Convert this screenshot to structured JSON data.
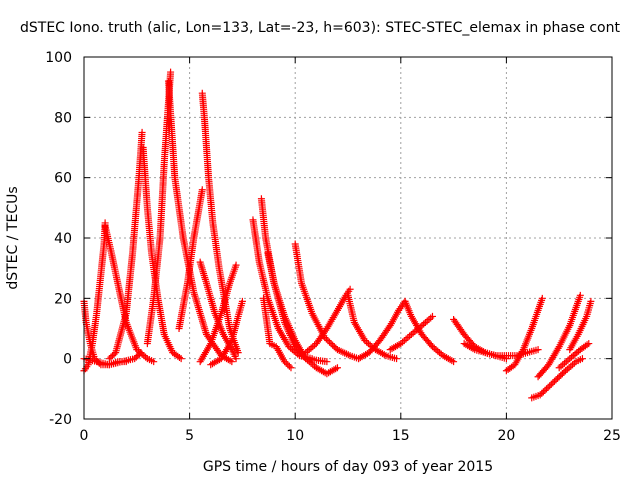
{
  "chart_data": {
    "type": "scatter",
    "title": "dSTEC Iono. truth (alic, Lon=133, Lat=-23, h=603): STEC-STEC_elemax in phase cont",
    "xlabel": "GPS time / hours of day 093 of year 2015",
    "ylabel": "dSTEC  / TECUs",
    "xlim": [
      0,
      25
    ],
    "ylim": [
      -20,
      100
    ],
    "xticks": [
      0,
      5,
      10,
      15,
      20,
      25
    ],
    "yticks": [
      -20,
      0,
      20,
      40,
      60,
      80,
      100
    ],
    "grid": true,
    "marker": "plus",
    "color": "#ff0000",
    "series": [
      {
        "x": [
          0.0,
          0.1,
          0.3,
          0.5,
          0.8,
          1.2,
          1.6,
          2.0
        ],
        "y": [
          19,
          12,
          5,
          0,
          -2,
          -2,
          -1,
          -1
        ]
      },
      {
        "x": [
          0.0,
          0.2,
          0.4,
          0.6,
          0.8,
          0.95,
          1.0
        ],
        "y": [
          -4,
          -2,
          5,
          15,
          28,
          38,
          45
        ]
      },
      {
        "x": [
          1.0,
          1.3,
          1.6,
          2.0,
          2.5,
          3.0,
          3.3
        ],
        "y": [
          44,
          35,
          25,
          12,
          3,
          0,
          -1
        ]
      },
      {
        "x": [
          0.0,
          0.6,
          1.2,
          1.8,
          2.4,
          2.7
        ],
        "y": [
          0,
          -1,
          -2,
          -1,
          0,
          2
        ]
      },
      {
        "x": [
          1.2,
          1.5,
          2.0,
          2.3,
          2.6,
          2.75
        ],
        "y": [
          0,
          2,
          15,
          35,
          60,
          75
        ]
      },
      {
        "x": [
          2.8,
          3.0,
          3.2,
          3.5,
          3.8,
          4.2,
          4.6
        ],
        "y": [
          70,
          50,
          35,
          20,
          8,
          2,
          0
        ]
      },
      {
        "x": [
          3.0,
          3.3,
          3.6,
          3.8,
          4.0,
          4.1
        ],
        "y": [
          5,
          20,
          40,
          65,
          85,
          95
        ]
      },
      {
        "x": [
          4.0,
          4.3,
          4.7,
          5.2,
          5.8,
          6.5,
          7.0
        ],
        "y": [
          92,
          60,
          40,
          22,
          8,
          1,
          -1
        ]
      },
      {
        "x": [
          4.5,
          4.9,
          5.2,
          5.4,
          5.6
        ],
        "y": [
          10,
          25,
          40,
          48,
          56
        ]
      },
      {
        "x": [
          5.6,
          5.7,
          5.9,
          6.1,
          6.4,
          6.9,
          7.3
        ],
        "y": [
          88,
          80,
          60,
          45,
          30,
          10,
          2
        ]
      },
      {
        "x": [
          5.5,
          5.8,
          6.2,
          6.6,
          7.0,
          7.2
        ],
        "y": [
          32,
          25,
          15,
          8,
          3,
          0
        ]
      },
      {
        "x": [
          5.5,
          6.0,
          6.5,
          6.9,
          7.2
        ],
        "y": [
          -1,
          5,
          15,
          25,
          31
        ]
      },
      {
        "x": [
          6.0,
          6.5,
          7.0,
          7.3,
          7.5
        ],
        "y": [
          -2,
          0,
          6,
          14,
          19
        ]
      },
      {
        "x": [
          8.0,
          8.3,
          8.7,
          9.2,
          9.7,
          10.2,
          10.8
        ],
        "y": [
          46,
          32,
          20,
          10,
          4,
          1,
          0
        ]
      },
      {
        "x": [
          8.4,
          8.6,
          9.0,
          9.5,
          10.0,
          10.5,
          11.5
        ],
        "y": [
          53,
          40,
          25,
          12,
          4,
          0,
          -1
        ]
      },
      {
        "x": [
          8.7,
          9.0,
          9.5,
          10.0,
          10.5,
          11.0,
          11.5,
          12.0
        ],
        "y": [
          35,
          25,
          14,
          6,
          0,
          -3,
          -5,
          -3
        ]
      },
      {
        "x": [
          8.5,
          8.8,
          9.1,
          9.5,
          9.8
        ],
        "y": [
          20,
          5,
          4,
          -1,
          -3
        ]
      },
      {
        "x": [
          10.0,
          10.3,
          10.8,
          11.4,
          12.0,
          12.6,
          13.0
        ],
        "y": [
          38,
          25,
          15,
          7,
          3,
          1,
          0
        ]
      },
      {
        "x": [
          10.5,
          11.0,
          11.5,
          12.0,
          12.4,
          12.6
        ],
        "y": [
          2,
          5,
          10,
          16,
          21,
          23
        ]
      },
      {
        "x": [
          12.5,
          12.8,
          13.3,
          13.8,
          14.3,
          14.8
        ],
        "y": [
          21,
          12,
          6,
          3,
          1,
          0
        ]
      },
      {
        "x": [
          13.0,
          13.5,
          14.0,
          14.5,
          14.9,
          15.2
        ],
        "y": [
          0,
          2,
          6,
          11,
          16,
          19
        ]
      },
      {
        "x": [
          15.2,
          15.5,
          16.0,
          16.5,
          17.0,
          17.5
        ],
        "y": [
          19,
          14,
          8,
          4,
          1,
          -1
        ]
      },
      {
        "x": [
          14.5,
          15.0,
          15.5,
          16.0,
          16.5
        ],
        "y": [
          3,
          5,
          8,
          11,
          14
        ]
      },
      {
        "x": [
          17.5,
          18.0,
          18.5,
          19.0,
          19.5,
          20.0
        ],
        "y": [
          13,
          8,
          4,
          2,
          1,
          0
        ]
      },
      {
        "x": [
          18.0,
          18.5,
          19.0,
          19.5,
          20.0,
          20.5,
          21.0,
          21.5
        ],
        "y": [
          5,
          3,
          2,
          1,
          1,
          1,
          2,
          3
        ]
      },
      {
        "x": [
          20.0,
          20.4,
          20.8,
          21.2,
          21.5,
          21.7
        ],
        "y": [
          -4,
          -2,
          3,
          10,
          16,
          20
        ]
      },
      {
        "x": [
          21.2,
          21.6,
          22.2,
          22.8,
          23.3,
          23.6
        ],
        "y": [
          -13,
          -12,
          -8,
          -4,
          -1,
          0
        ]
      },
      {
        "x": [
          21.5,
          22.0,
          22.5,
          23.0,
          23.3,
          23.5
        ],
        "y": [
          -6,
          -2,
          4,
          11,
          17,
          21
        ]
      },
      {
        "x": [
          22.5,
          23.0,
          23.5,
          23.9
        ],
        "y": [
          -3,
          0,
          3,
          5
        ]
      },
      {
        "x": [
          23.0,
          23.4,
          23.8,
          24.0
        ],
        "y": [
          3,
          8,
          14,
          19
        ]
      }
    ]
  }
}
